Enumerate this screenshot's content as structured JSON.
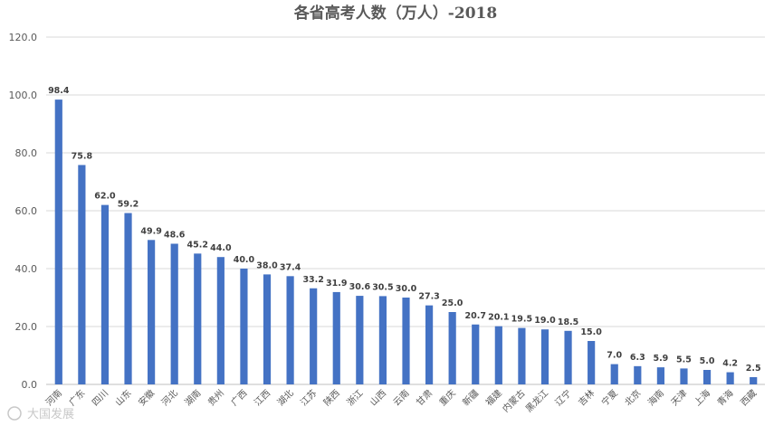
{
  "chart_data": {
    "type": "bar",
    "title": "各省高考人数（万人）-2018",
    "xlabel": "",
    "ylabel": "",
    "ylim": [
      0,
      120
    ],
    "yticks": [
      "0.0",
      "20.0",
      "40.0",
      "60.0",
      "80.0",
      "100.0",
      "120.0"
    ],
    "grid": true,
    "legend": "none",
    "bar_color": "#4472c4",
    "categories": [
      "河南",
      "广东",
      "四川",
      "山东",
      "安徽",
      "河北",
      "湖南",
      "贵州",
      "广西",
      "江西",
      "湖北",
      "江苏",
      "陕西",
      "浙江",
      "山西",
      "云南",
      "甘肃",
      "重庆",
      "新疆",
      "福建",
      "内蒙古",
      "黑龙江",
      "辽宁",
      "吉林",
      "宁夏",
      "北京",
      "海南",
      "天津",
      "上海",
      "青海",
      "西藏"
    ],
    "values": [
      98.4,
      75.8,
      62.0,
      59.2,
      49.9,
      48.6,
      45.2,
      44.0,
      40.0,
      38.0,
      37.4,
      33.2,
      31.9,
      30.6,
      30.5,
      30.0,
      27.3,
      25.0,
      20.7,
      20.1,
      19.5,
      19.0,
      18.5,
      15.0,
      7.0,
      6.3,
      5.9,
      5.5,
      5.0,
      4.2,
      2.5
    ]
  },
  "watermark": "大国发展"
}
